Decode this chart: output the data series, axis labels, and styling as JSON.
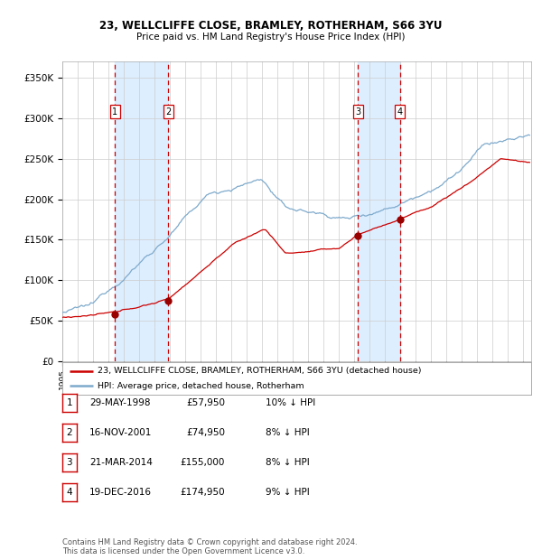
{
  "title1": "23, WELLCLIFFE CLOSE, BRAMLEY, ROTHERHAM, S66 3YU",
  "title2": "Price paid vs. HM Land Registry's House Price Index (HPI)",
  "ylim": [
    0,
    370000
  ],
  "xlim_start": 1995.0,
  "xlim_end": 2025.5,
  "yticks": [
    0,
    50000,
    100000,
    150000,
    200000,
    250000,
    300000,
    350000
  ],
  "ytick_labels": [
    "£0",
    "£50K",
    "£100K",
    "£150K",
    "£200K",
    "£250K",
    "£300K",
    "£350K"
  ],
  "sale_dates": [
    1998.41,
    2001.88,
    2014.22,
    2016.97
  ],
  "sale_prices": [
    57950,
    74950,
    155000,
    174950
  ],
  "sale_labels": [
    "1",
    "2",
    "3",
    "4"
  ],
  "vline_pairs": [
    [
      1998.41,
      2001.88
    ],
    [
      2014.22,
      2016.97
    ]
  ],
  "red_line_color": "#cc0000",
  "blue_line_color": "#7eaacc",
  "dot_color": "#990000",
  "shade_color": "#ddeeff",
  "vline_color": "#cc0000",
  "grid_color": "#cccccc",
  "bg_color": "#ffffff",
  "legend_label_red": "23, WELLCLIFFE CLOSE, BRAMLEY, ROTHERHAM, S66 3YU (detached house)",
  "legend_label_blue": "HPI: Average price, detached house, Rotherham",
  "table_entries": [
    {
      "num": "1",
      "date": "29-MAY-1998",
      "price": "£57,950",
      "pct": "10% ↓ HPI"
    },
    {
      "num": "2",
      "date": "16-NOV-2001",
      "price": "£74,950",
      "pct": "8% ↓ HPI"
    },
    {
      "num": "3",
      "date": "21-MAR-2014",
      "price": "£155,000",
      "pct": "8% ↓ HPI"
    },
    {
      "num": "4",
      "date": "19-DEC-2016",
      "price": "£174,950",
      "pct": "9% ↓ HPI"
    }
  ],
  "footer": "Contains HM Land Registry data © Crown copyright and database right 2024.\nThis data is licensed under the Open Government Licence v3.0."
}
